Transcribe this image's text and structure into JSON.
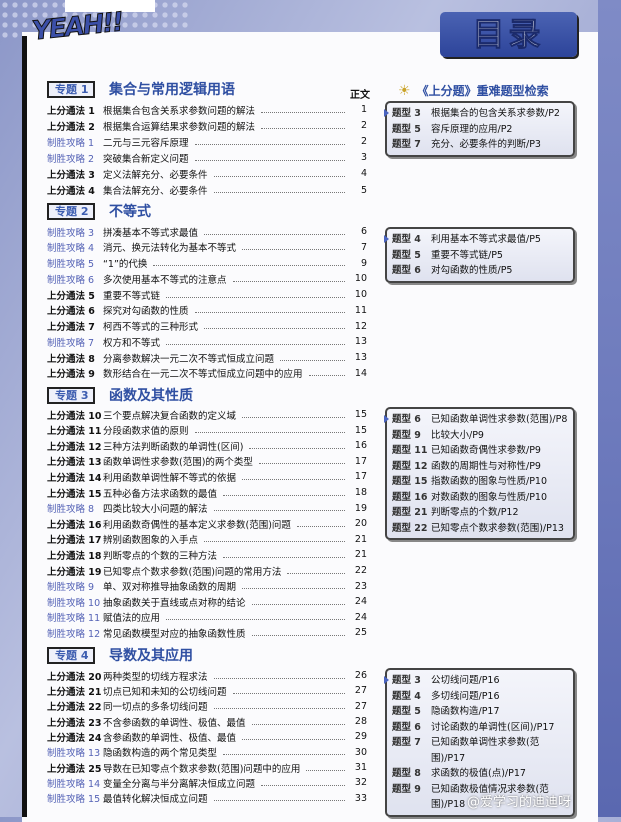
{
  "header": {
    "logo": "YEAH!!",
    "title": "目录",
    "page_col": "正文"
  },
  "sections": [
    {
      "tag": "专题 1",
      "title": "集合与常用逻辑用语",
      "items": [
        {
          "label": "上分通法 1",
          "type": "method",
          "title": "根据集合包含关系求参数问题的解法",
          "page": "1"
        },
        {
          "label": "上分通法 2",
          "type": "method",
          "title": "根据集合运算结果求参数问题的解法",
          "page": "2"
        },
        {
          "label": "制胜攻略 1",
          "type": "strategy",
          "title": "二元与三元容斥原理",
          "page": "2"
        },
        {
          "label": "制胜攻略 2",
          "type": "strategy",
          "title": "突破集合新定义问题",
          "page": "3"
        },
        {
          "label": "上分通法 3",
          "type": "method",
          "title": "定义法解充分、必要条件",
          "page": "4"
        },
        {
          "label": "上分通法 4",
          "type": "method",
          "title": "集合法解充分、必要条件",
          "page": "5"
        }
      ]
    },
    {
      "tag": "专题 2",
      "title": "不等式",
      "items": [
        {
          "label": "制胜攻略 3",
          "type": "strategy",
          "title": "拼凑基本不等式求最值",
          "page": "6"
        },
        {
          "label": "制胜攻略 4",
          "type": "strategy",
          "title": "消元、换元法转化为基本不等式",
          "page": "7"
        },
        {
          "label": "制胜攻略 5",
          "type": "strategy",
          "title": "“1”的代换",
          "page": "9"
        },
        {
          "label": "制胜攻略 6",
          "type": "strategy",
          "title": "多次使用基本不等式的注意点",
          "page": "10"
        },
        {
          "label": "上分通法 5",
          "type": "method",
          "title": "重要不等式链",
          "page": "10"
        },
        {
          "label": "上分通法 6",
          "type": "method",
          "title": "探究对勾函数的性质",
          "page": "11"
        },
        {
          "label": "上分通法 7",
          "type": "method",
          "title": "柯西不等式的三种形式",
          "page": "12"
        },
        {
          "label": "制胜攻略 7",
          "type": "strategy",
          "title": "权方和不等式",
          "page": "13"
        },
        {
          "label": "上分通法 8",
          "type": "method",
          "title": "分离参数解决一元二次不等式恒成立问题",
          "page": "13"
        },
        {
          "label": "上分通法 9",
          "type": "method",
          "title": "数形结合在一元二次不等式恒成立问题中的应用",
          "page": "14"
        }
      ]
    },
    {
      "tag": "专题 3",
      "title": "函数及其性质",
      "items": [
        {
          "label": "上分通法 10",
          "type": "method",
          "title": "三个要点解决复合函数的定义域",
          "page": "15"
        },
        {
          "label": "上分通法 11",
          "type": "method",
          "title": "分段函数求值的原则",
          "page": "15"
        },
        {
          "label": "上分通法 12",
          "type": "method",
          "title": "三种方法判断函数的单调性(区间)",
          "page": "16"
        },
        {
          "label": "上分通法 13",
          "type": "method",
          "title": "函数单调性求参数(范围)的两个类型",
          "page": "17"
        },
        {
          "label": "上分通法 14",
          "type": "method",
          "title": "利用函数单调性解不等式的依据",
          "page": "17"
        },
        {
          "label": "上分通法 15",
          "type": "method",
          "title": "五种必备方法求函数的最值",
          "page": "18"
        },
        {
          "label": "制胜攻略 8",
          "type": "strategy",
          "title": "四类比较大小问题的解法",
          "page": "19"
        },
        {
          "label": "上分通法 16",
          "type": "method",
          "title": "利用函数奇偶性的基本定义求参数(范围)问题",
          "page": "20"
        },
        {
          "label": "上分通法 17",
          "type": "method",
          "title": "辨别函数图象的入手点",
          "page": "21"
        },
        {
          "label": "上分通法 18",
          "type": "method",
          "title": "判断零点的个数的三种方法",
          "page": "21"
        },
        {
          "label": "上分通法 19",
          "type": "method",
          "title": "已知零点个数求参数(范围)问题的常用方法",
          "page": "22"
        },
        {
          "label": "制胜攻略 9",
          "type": "strategy",
          "title": "单、双对称推导抽象函数的周期",
          "page": "23"
        },
        {
          "label": "制胜攻略 10",
          "type": "strategy",
          "title": "抽象函数关于直线或点对称的结论",
          "page": "24"
        },
        {
          "label": "制胜攻略 11",
          "type": "strategy",
          "title": "赋值法的应用",
          "page": "24"
        },
        {
          "label": "制胜攻略 12",
          "type": "strategy",
          "title": "常见函数模型对应的抽象函数性质",
          "page": "25"
        }
      ]
    },
    {
      "tag": "专题 4",
      "title": "导数及其应用",
      "items": [
        {
          "label": "上分通法 20",
          "type": "method",
          "title": "两种类型的切线方程求法",
          "page": "26"
        },
        {
          "label": "上分通法 21",
          "type": "method",
          "title": "切点已知和未知的公切线问题",
          "page": "27"
        },
        {
          "label": "上分通法 22",
          "type": "method",
          "title": "同一切点的多条切线问题",
          "page": "27"
        },
        {
          "label": "上分通法 23",
          "type": "method",
          "title": "不含参函数的单调性、极值、最值",
          "page": "28"
        },
        {
          "label": "上分通法 24",
          "type": "method",
          "title": "含参函数的单调性、极值、最值",
          "page": "29"
        },
        {
          "label": "制胜攻略 13",
          "type": "strategy",
          "title": "隐函数构造的两个常见类型",
          "page": "30"
        },
        {
          "label": "上分通法 25",
          "type": "method",
          "title": "导数在已知零点个数求参数(范围)问题中的应用",
          "page": "31"
        },
        {
          "label": "制胜攻略 14",
          "type": "strategy",
          "title": "变量全分离与半分离解决恒成立问题",
          "page": "32"
        },
        {
          "label": "制胜攻略 15",
          "type": "strategy",
          "title": "最值转化解决恒成立问题",
          "page": "33"
        }
      ]
    }
  ],
  "index": {
    "icon": "lightbulb-icon",
    "title": "《上分题》重难题型检索",
    "boxes": [
      [
        {
          "label": "题型 3",
          "text": "根据集合的包含关系求参数/P2"
        },
        {
          "label": "题型 5",
          "text": "容斥原理的应用/P2"
        },
        {
          "label": "题型 7",
          "text": "充分、必要条件的判断/P3"
        }
      ],
      [
        {
          "label": "题型 4",
          "text": "利用基本不等式求最值/P5"
        },
        {
          "label": "题型 5",
          "text": "重要不等式链/P5"
        },
        {
          "label": "题型 6",
          "text": "对勾函数的性质/P5"
        }
      ],
      [
        {
          "label": "题型 6",
          "text": "已知函数单调性求参数(范围)/P8"
        },
        {
          "label": "题型 9",
          "text": "比较大小/P9"
        },
        {
          "label": "题型 11",
          "text": "已知函数奇偶性求参数/P9"
        },
        {
          "label": "题型 12",
          "text": "函数的周期性与对称性/P9"
        },
        {
          "label": "题型 15",
          "text": "指数函数的图象与性质/P10"
        },
        {
          "label": "题型 16",
          "text": "对数函数的图象与性质/P10"
        },
        {
          "label": "题型 21",
          "text": "判断零点的个数/P12"
        },
        {
          "label": "题型 22",
          "text": "已知零点个数求参数(范围)/P13"
        }
      ],
      [
        {
          "label": "题型 3",
          "text": "公切线问题/P16"
        },
        {
          "label": "题型 4",
          "text": "多切线问题/P16"
        },
        {
          "label": "题型 5",
          "text": "隐函数构造/P17"
        },
        {
          "label": "题型 6",
          "text": "讨论函数的单调性(区间)/P17"
        },
        {
          "label": "题型 7",
          "text": "已知函数单调性求参数(范围)/P17"
        },
        {
          "label": "题型 8",
          "text": "求函数的极值(点)/P17"
        },
        {
          "label": "题型 9",
          "text": "已知函数极值情况求参数(范围)/P18"
        }
      ]
    ]
  },
  "watermark": "@爱学习的迪迪呀",
  "colors": {
    "method": "#111111",
    "strategy": "#5563b6",
    "accent": "#2f4fa2"
  }
}
